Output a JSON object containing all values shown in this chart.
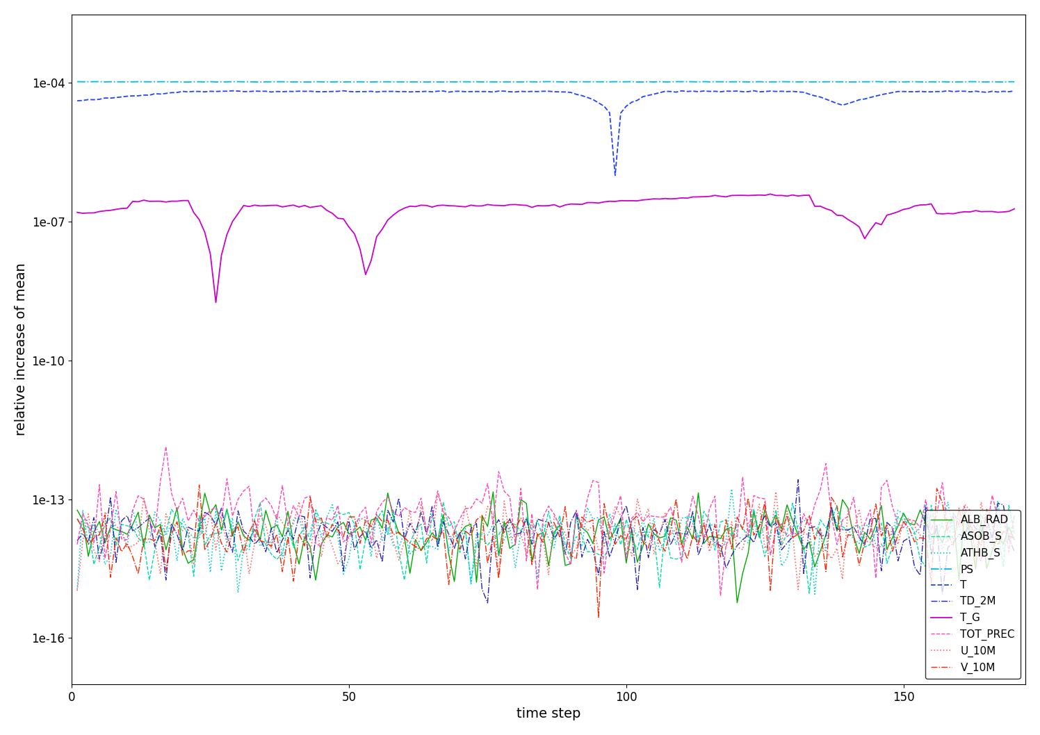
{
  "N": 170,
  "ylabel": "relative increase of mean",
  "xlabel": "time step",
  "xlim": [
    0,
    172
  ],
  "ylim": [
    1e-17,
    0.003
  ],
  "yticks": [
    1e-16,
    1e-13,
    1e-10,
    1e-07,
    0.0001
  ],
  "ytick_labels": [
    "1e-16",
    "1e-13",
    "1e-10",
    "1e-07",
    "1e-04"
  ],
  "xticks": [
    0,
    50,
    100,
    150
  ],
  "series_colors": {
    "ALB_RAD": "#00AA00",
    "ASOB_S": "#00DDAA",
    "ATHB_S": "#00CCDD",
    "PS": "#00BBEE",
    "T": "#2244FF",
    "TD_2M": "#2222BB",
    "T_G": "#CC00CC",
    "TOT_PREC": "#FF44BB",
    "U_10M": "#FF6666",
    "V_10M": "#FF2200"
  },
  "series_styles": {
    "ALB_RAD": {
      "ls": "-",
      "lw": 1.0
    },
    "ASOB_S": {
      "ls": "--",
      "lw": 1.0
    },
    "ATHB_S": {
      "ls": ":",
      "lw": 1.2
    },
    "PS": {
      "ls": "-.",
      "lw": 1.3
    },
    "T": {
      "ls": "--",
      "lw": 1.3
    },
    "TD_2M": {
      "ls": "-.",
      "lw": 1.0
    },
    "T_G": {
      "ls": "-",
      "lw": 1.3
    },
    "TOT_PREC": {
      "ls": "--",
      "lw": 1.0
    },
    "U_10M": {
      "ls": ":",
      "lw": 1.2
    },
    "V_10M": {
      "ls": "-.",
      "lw": 1.0
    }
  },
  "legend_order": [
    "ALB_RAD",
    "ASOB_S",
    "ATHB_S",
    "PS",
    "T",
    "TD_2M",
    "T_G",
    "TOT_PREC",
    "U_10M",
    "V_10M"
  ],
  "fontsize": 14,
  "tick_fontsize": 12
}
